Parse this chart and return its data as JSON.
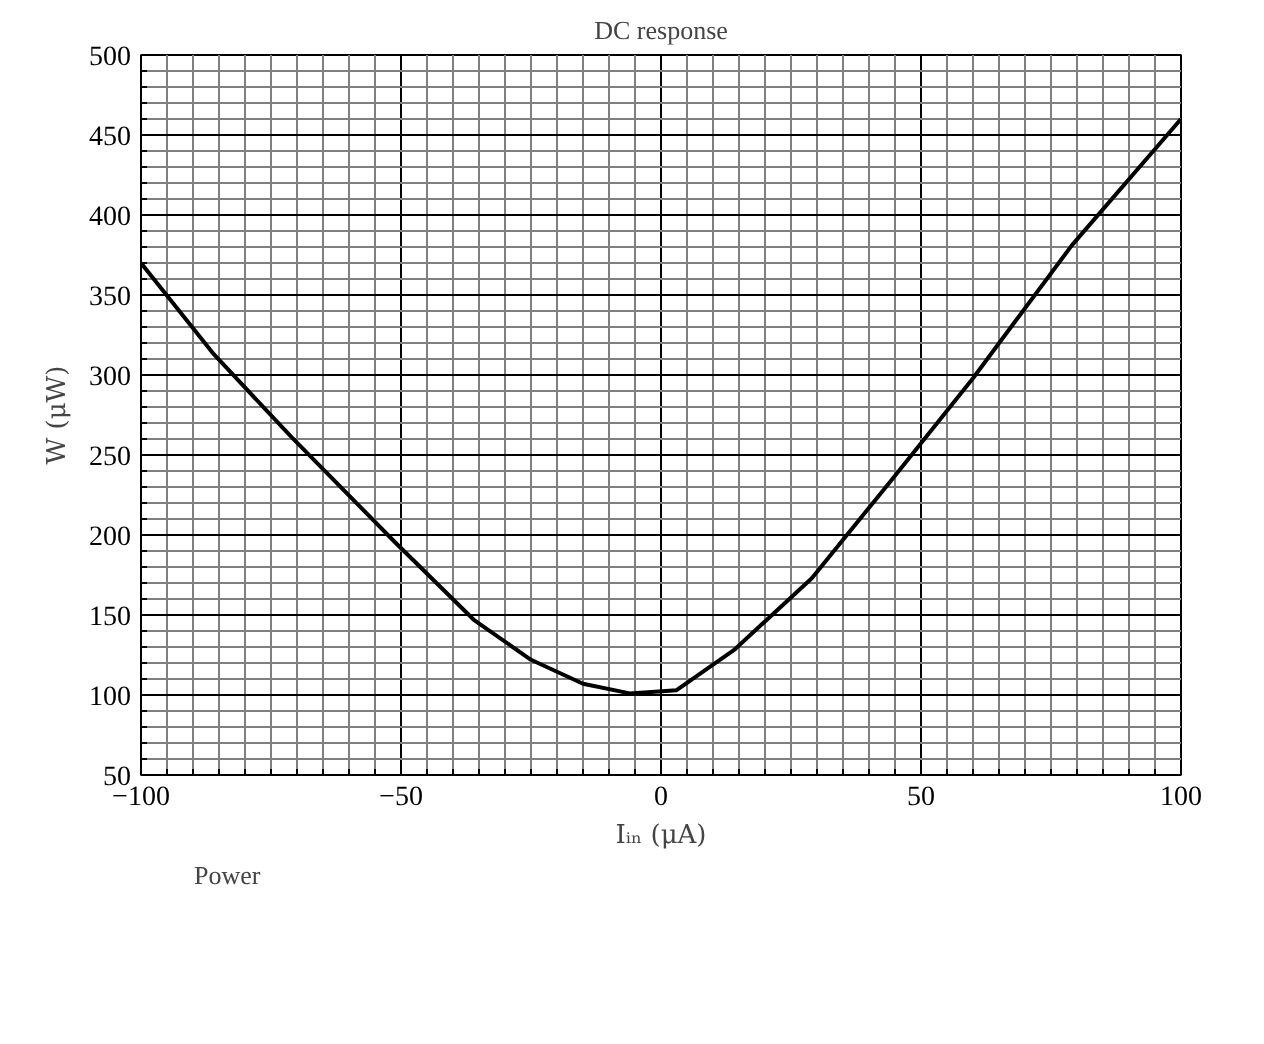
{
  "chart_data": {
    "type": "line",
    "title": "DC response",
    "xlabel": "Iᵢₙ (μA)",
    "ylabel": "W (μW)",
    "x": [
      -100,
      -86,
      -71,
      -51,
      -36,
      -25,
      -15,
      -6,
      3,
      14,
      29,
      44,
      60,
      79,
      100
    ],
    "series": [
      {
        "name": "Power",
        "color": "#000000",
        "values": [
          370,
          313,
          261,
          195,
          147,
          122,
          107,
          101,
          103,
          128,
          173,
          233,
          298,
          381,
          460
        ]
      }
    ],
    "xlim": [
      -100,
      100
    ],
    "ylim": [
      50,
      500
    ],
    "xticks": [
      {
        "value": -100,
        "label": "−100"
      },
      {
        "value": -50,
        "label": "−50"
      },
      0,
      50,
      100
    ],
    "yticks": [
      50,
      100,
      150,
      200,
      250,
      300,
      350,
      400,
      450,
      500
    ],
    "grid": true,
    "legend": "bottom left",
    "marker": "none",
    "line_style": "solid"
  }
}
